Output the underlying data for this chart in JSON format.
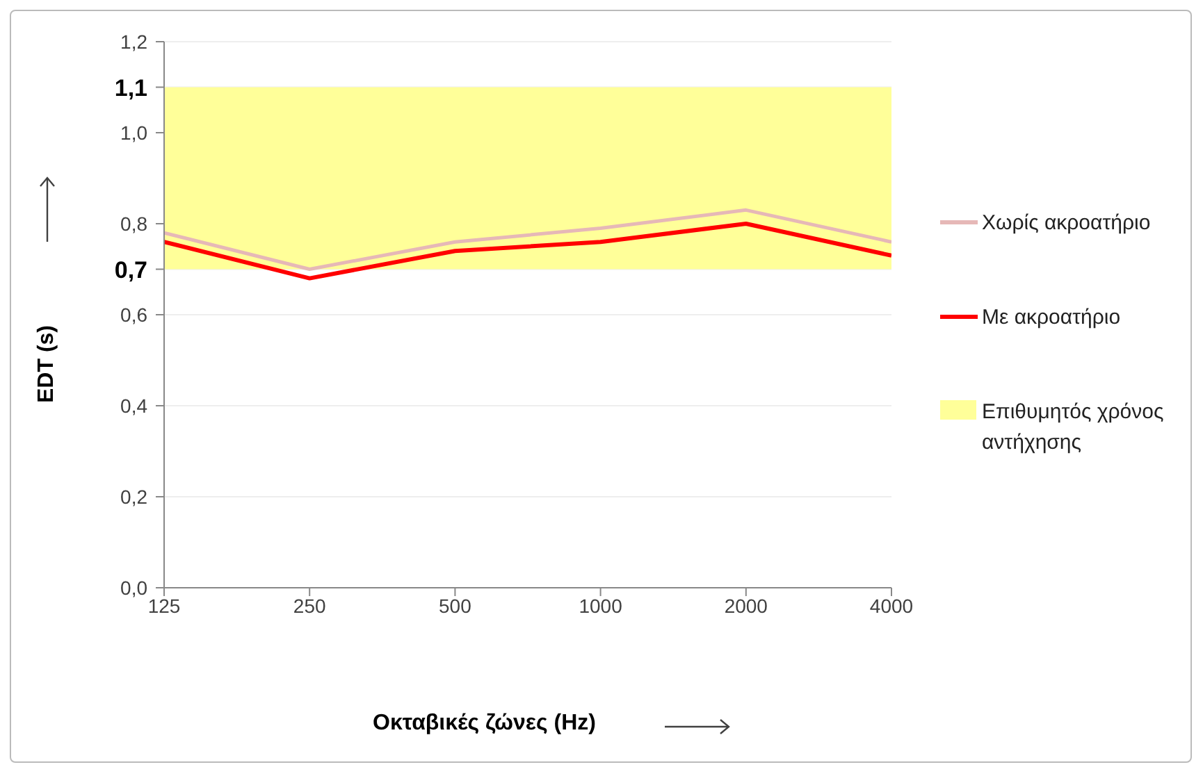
{
  "chart_data": {
    "type": "line",
    "xlabel": "Οκταβικές ζώνες (Hz)",
    "ylabel": "EDT (s)",
    "categories": [
      "125",
      "250",
      "500",
      "1000",
      "2000",
      "4000"
    ],
    "series": [
      {
        "name": "Χωρίς ακροατήριο",
        "color": "#e6b8b7",
        "values": [
          0.78,
          0.7,
          0.76,
          0.79,
          0.83,
          0.76
        ]
      },
      {
        "name": "Με ακροατήριο",
        "color": "#ff0000",
        "values": [
          0.76,
          0.68,
          0.74,
          0.76,
          0.8,
          0.73
        ]
      }
    ],
    "bands": [
      {
        "axis": "y",
        "from": 0.7,
        "to": 1.1,
        "label": "Επιθυμητός χρόνος αντήχησης",
        "color": "#ffff99"
      }
    ],
    "ylim": [
      0,
      1.2
    ],
    "yticks": [
      {
        "value": 0,
        "label": "0,0"
      },
      {
        "value": 0.2,
        "label": "0,2"
      },
      {
        "value": 0.4,
        "label": "0,4"
      },
      {
        "value": 0.6,
        "label": "0,6"
      },
      {
        "value": 0.7,
        "label": "0,7"
      },
      {
        "value": 0.8,
        "label": "0,8"
      },
      {
        "value": 1.0,
        "label": "1,0"
      },
      {
        "value": 1.1,
        "label": "1,1"
      },
      {
        "value": 1.2,
        "label": "1,2"
      }
    ],
    "grid": "y",
    "legend": "right",
    "marker": "none",
    "line_style": "solid"
  }
}
